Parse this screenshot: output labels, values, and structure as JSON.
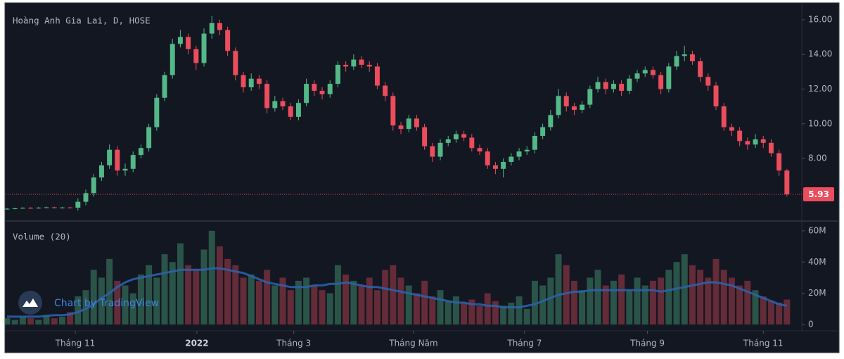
{
  "chart_data": [
    {
      "type": "candlestick",
      "title": "Hoàng Anh Gia Lai, D, HOSE",
      "open": [
        5.08,
        5.1,
        5.12,
        5.15,
        5.13,
        5.16,
        5.18,
        5.15,
        5.17,
        5.16,
        5.5,
        6.0,
        6.9,
        7.6,
        8.5,
        7.3,
        7.4,
        8.2,
        8.6,
        9.8,
        11.5,
        12.8,
        14.6,
        15.0,
        14.3,
        13.5,
        15.2,
        15.8,
        15.4,
        14.2,
        12.8,
        12.1,
        12.6,
        12.3,
        10.9,
        11.3,
        11.0,
        10.4,
        11.2,
        12.3,
        11.9,
        11.7,
        12.3,
        13.4,
        13.3,
        13.7,
        13.4,
        13.3,
        12.2,
        11.6,
        9.9,
        9.7,
        10.3,
        9.8,
        8.7,
        8.1,
        8.9,
        9.1,
        9.4,
        9.2,
        8.6,
        8.4,
        7.6,
        7.4,
        7.8,
        8.1,
        8.4,
        8.5,
        9.3,
        9.8,
        10.5,
        11.6,
        11.0,
        10.8,
        11.1,
        12.0,
        12.4,
        12.0,
        12.3,
        11.9,
        12.6,
        12.9,
        13.1,
        12.8,
        12.0,
        13.3,
        13.9,
        14.0,
        13.6,
        12.7,
        12.2,
        11.0,
        9.8,
        9.6,
        9.0,
        8.8,
        9.1,
        8.9,
        8.3,
        7.3
      ],
      "high": [
        5.14,
        5.16,
        5.19,
        5.19,
        5.2,
        5.22,
        5.22,
        5.21,
        5.21,
        5.7,
        6.2,
        7.1,
        7.8,
        8.8,
        8.7,
        7.7,
        8.4,
        8.8,
        10.0,
        11.7,
        13.0,
        14.9,
        15.4,
        15.2,
        14.5,
        15.5,
        16.2,
        16.0,
        15.6,
        14.4,
        13.0,
        12.9,
        12.8,
        12.5,
        11.6,
        11.5,
        11.2,
        11.4,
        12.6,
        12.5,
        12.1,
        12.5,
        13.6,
        13.6,
        14.0,
        13.9,
        13.6,
        13.5,
        12.4,
        11.8,
        10.1,
        10.5,
        10.5,
        10.0,
        8.9,
        9.1,
        9.3,
        9.6,
        9.6,
        9.4,
        8.8,
        8.6,
        7.8,
        8.0,
        8.3,
        8.6,
        8.7,
        9.5,
        10.0,
        10.8,
        12.0,
        11.8,
        11.2,
        11.3,
        12.2,
        12.7,
        12.6,
        12.5,
        12.5,
        12.8,
        13.1,
        13.3,
        13.3,
        13.0,
        13.5,
        14.2,
        14.5,
        14.2,
        13.8,
        12.9,
        12.4,
        11.2,
        10.0,
        9.8,
        9.2,
        9.4,
        9.3,
        9.1,
        8.5,
        7.4
      ],
      "low": [
        5.04,
        5.06,
        5.08,
        5.09,
        5.09,
        5.12,
        5.11,
        5.11,
        5.12,
        5.0,
        5.3,
        5.8,
        6.7,
        7.4,
        7.0,
        7.0,
        7.2,
        8.0,
        8.4,
        9.6,
        11.3,
        12.6,
        14.4,
        14.0,
        13.1,
        13.3,
        14.9,
        15.1,
        13.9,
        12.5,
        11.8,
        11.9,
        12.0,
        10.6,
        10.7,
        10.8,
        10.2,
        10.2,
        11.0,
        11.6,
        11.4,
        11.5,
        12.1,
        13.0,
        13.1,
        13.2,
        13.0,
        12.0,
        11.3,
        9.6,
        9.4,
        9.5,
        9.6,
        8.5,
        7.8,
        7.9,
        8.7,
        8.9,
        9.0,
        8.4,
        8.2,
        7.4,
        7.1,
        6.9,
        7.6,
        7.9,
        8.2,
        8.3,
        9.1,
        9.6,
        10.3,
        10.7,
        10.5,
        10.6,
        10.9,
        11.8,
        11.7,
        11.8,
        11.6,
        11.7,
        12.4,
        12.7,
        12.6,
        11.7,
        11.8,
        13.1,
        13.6,
        13.4,
        12.4,
        11.9,
        10.8,
        9.6,
        9.3,
        8.7,
        8.5,
        8.6,
        8.6,
        8.1,
        7.0,
        5.8
      ],
      "close": [
        5.1,
        5.12,
        5.15,
        5.13,
        5.16,
        5.18,
        5.15,
        5.17,
        5.16,
        5.5,
        6.0,
        6.9,
        7.6,
        8.5,
        7.3,
        7.4,
        8.2,
        8.6,
        9.8,
        11.5,
        12.8,
        14.6,
        15.0,
        14.3,
        13.5,
        15.2,
        15.8,
        15.4,
        14.2,
        12.8,
        12.1,
        12.6,
        12.3,
        10.9,
        11.3,
        11.0,
        10.4,
        11.2,
        12.3,
        11.9,
        11.7,
        12.3,
        13.4,
        13.3,
        13.7,
        13.4,
        13.3,
        12.2,
        11.6,
        9.9,
        9.7,
        10.3,
        9.8,
        8.7,
        8.1,
        8.9,
        9.1,
        9.4,
        9.2,
        8.6,
        8.4,
        7.6,
        7.4,
        7.8,
        8.1,
        8.4,
        8.5,
        9.3,
        9.8,
        10.5,
        11.6,
        11.0,
        10.8,
        11.1,
        12.0,
        12.4,
        12.0,
        12.3,
        11.9,
        12.6,
        12.9,
        13.1,
        12.8,
        12.0,
        13.3,
        13.9,
        14.0,
        13.6,
        12.7,
        12.2,
        11.0,
        9.8,
        9.6,
        9.0,
        8.8,
        9.1,
        8.9,
        8.3,
        7.3,
        5.93
      ],
      "up_color": "#53b987",
      "down_color": "#eb4d5c",
      "ylim": [
        4.43,
        16.89
      ],
      "yticks": [
        {
          "value": 8,
          "label": "8.00"
        },
        {
          "value": 10,
          "label": "10.00"
        },
        {
          "value": 12,
          "label": "12.00"
        },
        {
          "value": 14,
          "label": "14.00"
        },
        {
          "value": 16,
          "label": "16.00"
        }
      ],
      "xlim": [
        -0.18,
        100.89
      ],
      "xticks": [
        {
          "value": 8.66,
          "label": "Tháng 11"
        },
        {
          "value": 24.1,
          "label": "2022"
        },
        {
          "value": 36.4,
          "label": "Tháng 3"
        },
        {
          "value": 51.6,
          "label": "Tháng Năm"
        },
        {
          "value": 65.7,
          "label": "Tháng 7"
        },
        {
          "value": 81.3,
          "label": "Tháng 9"
        },
        {
          "value": 96,
          "label": "Tháng 11"
        }
      ],
      "grid": false
    },
    {
      "type": "volume",
      "title": "Volume (20)",
      "values": [
        4,
        3,
        5,
        4,
        3,
        6,
        4,
        5,
        8,
        18,
        22,
        35,
        30,
        42,
        28,
        25,
        20,
        32,
        38,
        30,
        45,
        40,
        52,
        38,
        35,
        48,
        60,
        50,
        42,
        38,
        30,
        32,
        28,
        35,
        25,
        30,
        22,
        28,
        30,
        25,
        22,
        20,
        38,
        32,
        28,
        25,
        30,
        22,
        35,
        38,
        30,
        25,
        20,
        28,
        18,
        22,
        15,
        18,
        14,
        16,
        12,
        20,
        15,
        12,
        14,
        18,
        10,
        28,
        25,
        30,
        45,
        38,
        28,
        22,
        30,
        35,
        25,
        28,
        32,
        22,
        30,
        25,
        28,
        30,
        35,
        40,
        45,
        38,
        35,
        30,
        42,
        35,
        30,
        25,
        28,
        22,
        18,
        15,
        14,
        16
      ],
      "ma": [
        5,
        5,
        5,
        5,
        5,
        5.5,
        6,
        6,
        6.5,
        8,
        10,
        13,
        17,
        20,
        24,
        27,
        29,
        30,
        31,
        32,
        33,
        34,
        35,
        35,
        35,
        35,
        36,
        36,
        35,
        34,
        33,
        31,
        29,
        27,
        26,
        25,
        24,
        24,
        24,
        25,
        25,
        26,
        26,
        27,
        26,
        25,
        24,
        24,
        23,
        22,
        21,
        20,
        19,
        18,
        17,
        16,
        15,
        14,
        14,
        13,
        13,
        12,
        12,
        11,
        11,
        11,
        12,
        13,
        15,
        17,
        19,
        20,
        21,
        21,
        22,
        22,
        22,
        22,
        22,
        22,
        22,
        22,
        22,
        21,
        22,
        23,
        24,
        25,
        26,
        27,
        27,
        26,
        25,
        23,
        21,
        19,
        17,
        15,
        13,
        12
      ],
      "up_color": "rgba(83,185,135,0.38)",
      "down_color": "rgba(235,77,92,0.38)",
      "ma_color": "#2a64b0",
      "ylim": [
        -4.05,
        65.8
      ],
      "yticks": [
        0,
        {
          "value": 20,
          "label": "20M"
        },
        {
          "value": 40,
          "label": "40M"
        },
        {
          "value": 60,
          "label": "60M"
        }
      ]
    }
  ],
  "watermark": "Chart by TradingView"
}
